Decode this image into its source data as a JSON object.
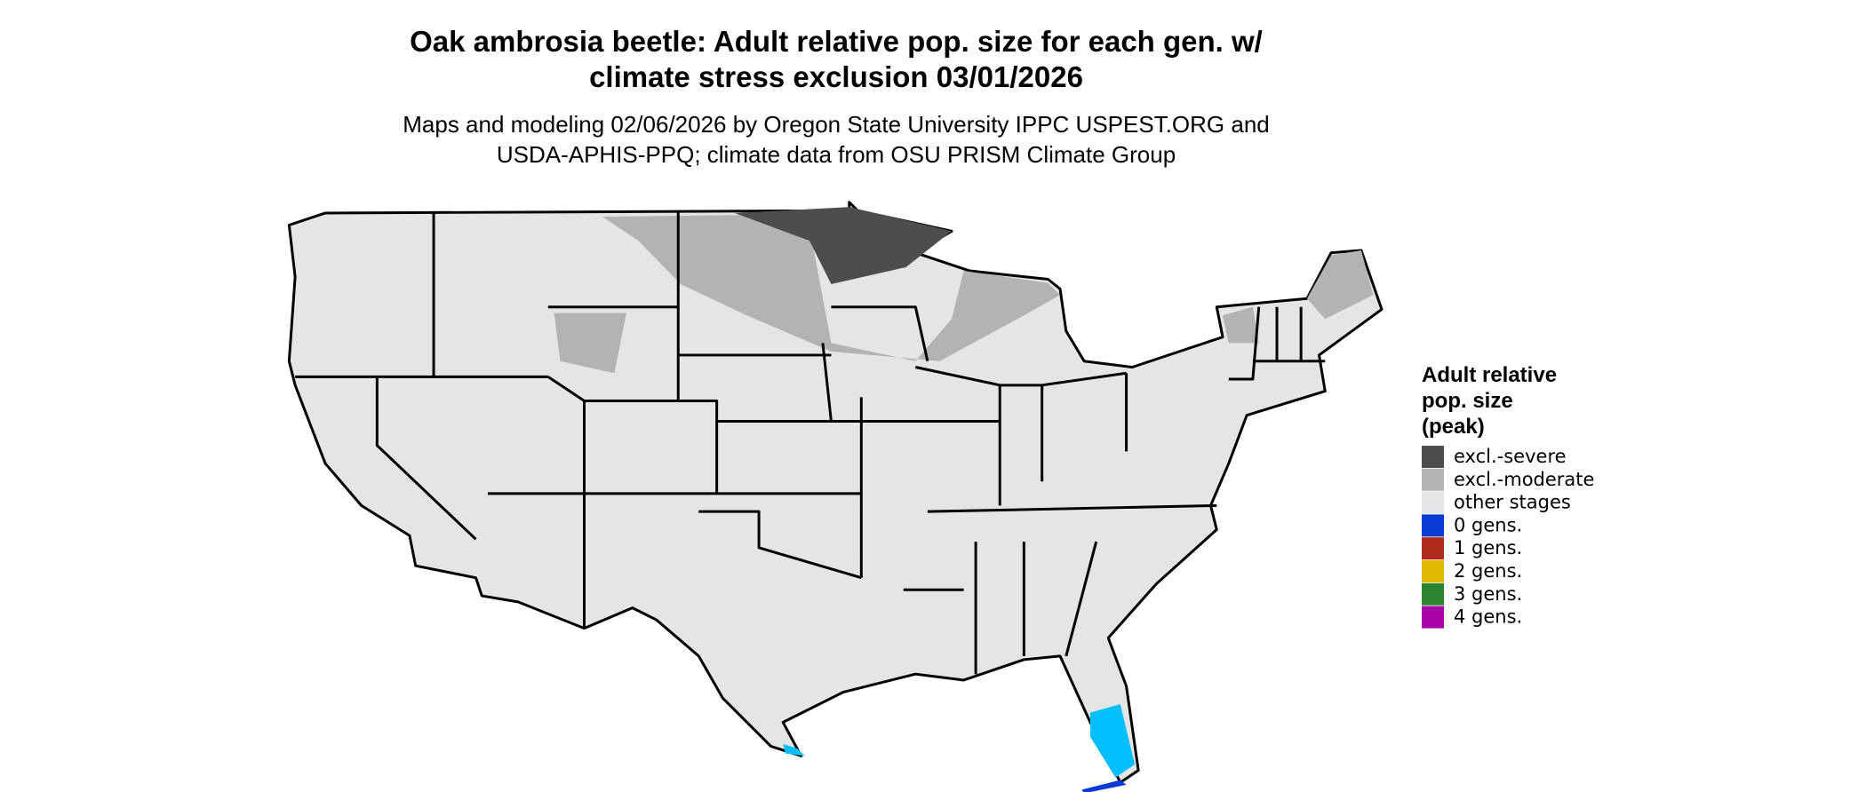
{
  "header": {
    "title": [
      "Oak ambrosia beetle: Adult relative pop. size for each gen. w/",
      "climate stress exclusion 03/01/2026"
    ],
    "subtitle": [
      "Maps and modeling 02/06/2026 by Oregon State University IPPC USPEST.ORG and",
      "USDA-APHIS-PPQ; climate data from OSU PRISM Climate Group"
    ]
  },
  "legend": {
    "title": [
      "Adult relative",
      "pop. size",
      "(peak)"
    ],
    "items": [
      {
        "label": "excl.-severe",
        "color": "#4d4d4d"
      },
      {
        "label": "excl.-moderate",
        "color": "#b3b3b3"
      },
      {
        "label": "other stages",
        "color": "#e5e5e5"
      },
      {
        "label": "0 gens.",
        "color": "#0a3bd6"
      },
      {
        "label": "1 gens.",
        "color": "#b02a1a"
      },
      {
        "label": "2 gens.",
        "color": "#dfb800"
      },
      {
        "label": "3 gens.",
        "color": "#2e8530"
      },
      {
        "label": "4 gens.",
        "color": "#a800a8"
      }
    ]
  }
}
